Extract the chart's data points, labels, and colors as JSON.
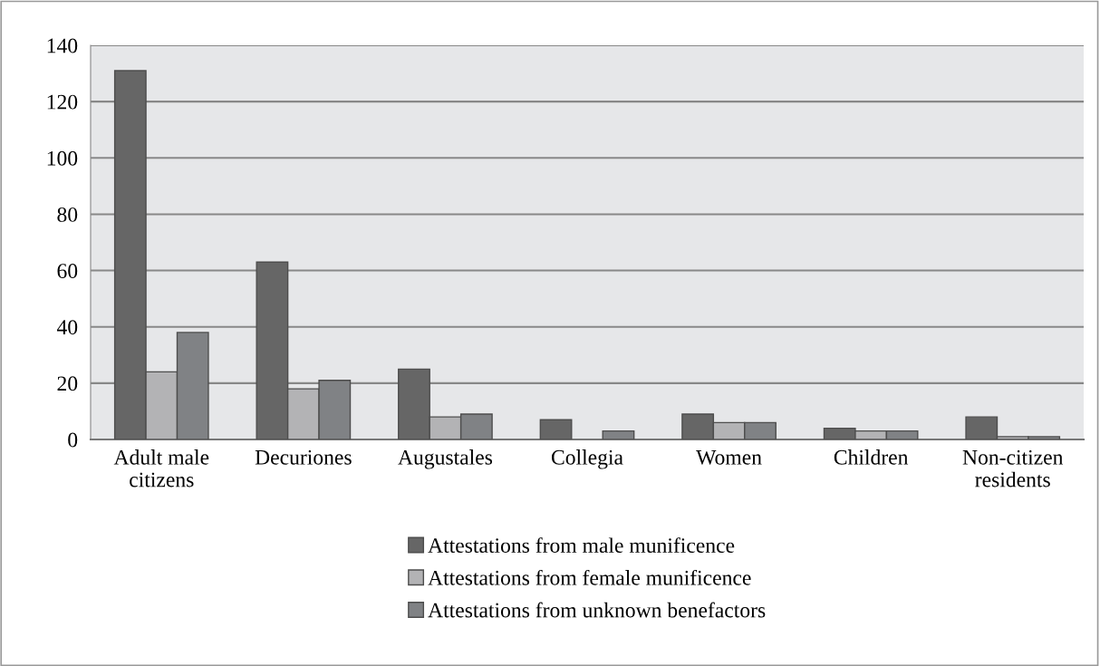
{
  "chart_data": {
    "type": "bar",
    "categories": [
      "Adult male\ncitizens",
      "Decuriones",
      "Augustales",
      "Collegia",
      "Women",
      "Children",
      "Non-citizen\nresidents"
    ],
    "series": [
      {
        "name": "Attestations from male munificence",
        "color": "#666666",
        "values": [
          131,
          63,
          25,
          7,
          9,
          4,
          8
        ]
      },
      {
        "name": "Attestations from female munificence",
        "color": "#b3b3b5",
        "values": [
          24,
          18,
          8,
          null,
          6,
          3,
          1
        ]
      },
      {
        "name": "Attestations from unknown benefactors",
        "color": "#808285",
        "values": [
          38,
          21,
          9,
          3,
          6,
          3,
          1
        ]
      }
    ],
    "ylim": [
      0,
      140
    ],
    "yticks": [
      0,
      20,
      40,
      60,
      80,
      100,
      120,
      140
    ],
    "grid": "y",
    "legend": "bottom"
  }
}
